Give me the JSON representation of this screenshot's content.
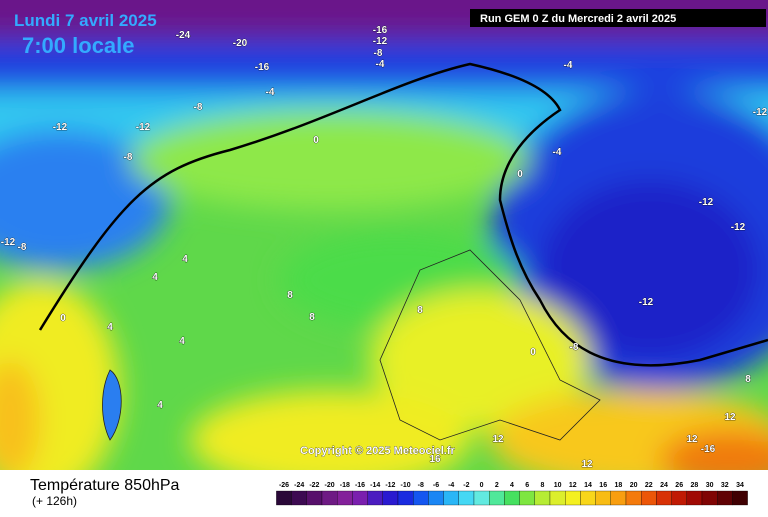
{
  "header": {
    "date": "Lundi 7 avril 2025",
    "time": "7:00 locale",
    "run": "Run GEM 0 Z du Mercredi 2 avril 2025"
  },
  "map": {
    "copyright": "Copyright © 2025 Meteociel.fr",
    "contour_labels": [
      -24,
      -20,
      -16,
      -12,
      -8,
      -4,
      -16,
      -4,
      -12,
      -8,
      -12,
      -8,
      -12,
      0,
      -4,
      -4,
      -8,
      -12,
      -12,
      -12,
      0,
      0,
      4,
      4,
      8,
      8,
      4,
      4,
      8,
      12,
      12,
      4,
      -8,
      -12,
      12,
      16,
      -16,
      12,
      8,
      0
    ]
  },
  "footer": {
    "title": "Température 850hPa",
    "lead": "(+ 126h)"
  },
  "legend": {
    "ticks": [
      -26,
      -24,
      -22,
      -20,
      -18,
      -16,
      -14,
      -12,
      -10,
      -8,
      -6,
      -4,
      -2,
      0,
      2,
      4,
      6,
      8,
      10,
      12,
      14,
      16,
      18,
      20,
      22,
      24,
      26,
      28,
      30,
      32,
      34
    ],
    "colors": [
      "#2a0838",
      "#3d0a52",
      "#57106b",
      "#6e1a84",
      "#83209a",
      "#7a1fae",
      "#4b1cc0",
      "#2a1ad0",
      "#1a2be0",
      "#1556f0",
      "#1b86f4",
      "#2ab6f6",
      "#45d8f4",
      "#62eae0",
      "#50e89a",
      "#46e060",
      "#7ee640",
      "#b6ec34",
      "#dcee2c",
      "#f4f020",
      "#f8d61a",
      "#f8bc14",
      "#f89e10",
      "#f47a0c",
      "#ec5608",
      "#d83206",
      "#c01a04",
      "#a00a04",
      "#800404",
      "#600204",
      "#400002"
    ]
  }
}
